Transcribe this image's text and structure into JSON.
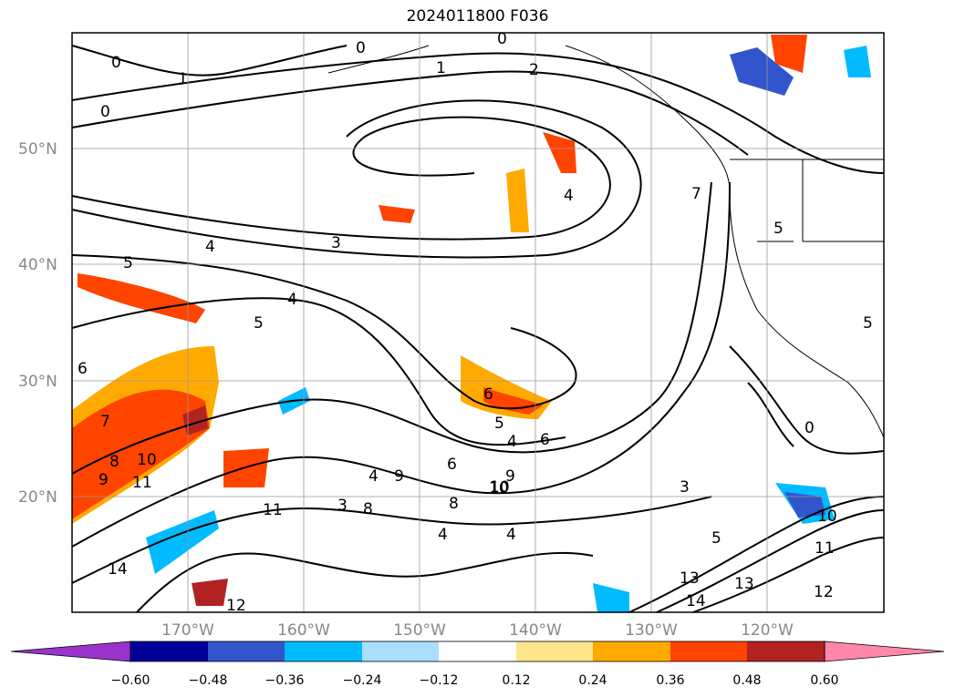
{
  "title": "2024011800 F036",
  "map": {
    "lat_labels": [
      "50°N",
      "40°N",
      "30°N",
      "20°N"
    ],
    "lon_labels": [
      "170°W",
      "160°W",
      "150°W",
      "140°W",
      "130°W",
      "120°W"
    ],
    "contour_labels": [
      "0",
      "1",
      "0",
      "2",
      "0",
      "1",
      "0",
      "3",
      "4",
      "5",
      "4",
      "5",
      "6",
      "7",
      "8",
      "9",
      "10",
      "11",
      "8",
      "9",
      "10",
      "11",
      "12",
      "14",
      "4",
      "6",
      "5",
      "4",
      "6",
      "10",
      "9",
      "8",
      "4",
      "6",
      "4",
      "5",
      "13",
      "13",
      "14",
      "12",
      "7",
      "5",
      "3",
      "0",
      "10",
      "11",
      "3",
      "4",
      "5"
    ]
  },
  "colorbar": {
    "ticks": [
      "−0.60",
      "−0.48",
      "−0.36",
      "−0.24",
      "−0.12",
      "0.12",
      "0.24",
      "0.36",
      "0.48",
      "0.60"
    ],
    "colors": [
      "#9933cc",
      "#000099",
      "#3355cc",
      "#00bbff",
      "#aadeff",
      "#ffffff",
      "#ffe68a",
      "#ffaa00",
      "#ff4400",
      "#b22222",
      "#ff88aa"
    ]
  }
}
